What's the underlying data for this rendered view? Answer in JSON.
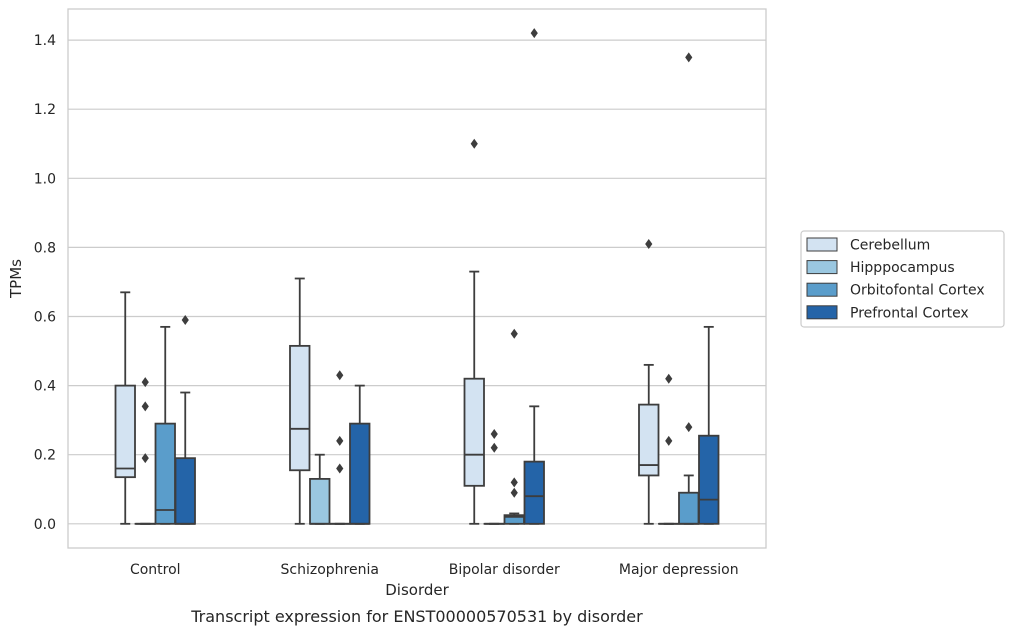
{
  "chart_data": {
    "type": "box",
    "caption": "Transcript expression for ENST00000570531 by disorder",
    "xlabel": "Disorder",
    "ylabel": "TPMs",
    "ylim": [
      -0.07,
      1.49
    ],
    "yticks": [
      "0.0",
      "0.2",
      "0.4",
      "0.6",
      "0.8",
      "1.0",
      "1.2",
      "1.4"
    ],
    "ytick_values": [
      0,
      0.2,
      0.4,
      0.6,
      0.8,
      1.0,
      1.2,
      1.4
    ],
    "grid": "horizontal",
    "legend_position": "right",
    "categories": [
      "Control",
      "Schizophrenia",
      "Bipolar disorder",
      "Major depression"
    ],
    "series": [
      {
        "name": "Cerebellum",
        "color": "#d3e3f2",
        "boxes": [
          {
            "whislo": 0.0,
            "q1": 0.135,
            "median": 0.16,
            "q3": 0.4,
            "whishi": 0.67,
            "fliers": []
          },
          {
            "whislo": 0.0,
            "q1": 0.155,
            "median": 0.275,
            "q3": 0.515,
            "whishi": 0.71,
            "fliers": []
          },
          {
            "whislo": 0.0,
            "q1": 0.11,
            "median": 0.2,
            "q3": 0.42,
            "whishi": 0.73,
            "fliers": [
              1.1
            ]
          },
          {
            "whislo": 0.0,
            "q1": 0.14,
            "median": 0.17,
            "q3": 0.345,
            "whishi": 0.46,
            "fliers": [
              0.81
            ]
          }
        ]
      },
      {
        "name": "Hipppocampus",
        "color": "#9ac7e0",
        "boxes": [
          {
            "whislo": 0.0,
            "q1": 0.0,
            "median": 0.0,
            "q3": 0.0,
            "whishi": 0.0,
            "fliers": [
              0.19,
              0.34,
              0.41
            ]
          },
          {
            "whislo": 0.0,
            "q1": 0.0,
            "median": 0.0,
            "q3": 0.13,
            "whishi": 0.2,
            "fliers": []
          },
          {
            "whislo": 0.0,
            "q1": 0.0,
            "median": 0.0,
            "q3": 0.0,
            "whishi": 0.0,
            "fliers": [
              0.22,
              0.26
            ]
          },
          {
            "whislo": 0.0,
            "q1": 0.0,
            "median": 0.0,
            "q3": 0.0,
            "whishi": 0.0,
            "fliers": [
              0.24,
              0.42
            ]
          }
        ]
      },
      {
        "name": "Orbitofontal Cortex",
        "color": "#5a9dcb",
        "boxes": [
          {
            "whislo": 0.0,
            "q1": 0.0,
            "median": 0.04,
            "q3": 0.29,
            "whishi": 0.57,
            "fliers": []
          },
          {
            "whislo": 0.0,
            "q1": 0.0,
            "median": 0.0,
            "q3": 0.0,
            "whishi": 0.0,
            "fliers": [
              0.16,
              0.24,
              0.43
            ]
          },
          {
            "whislo": 0.0,
            "q1": 0.0,
            "median": 0.02,
            "q3": 0.025,
            "whishi": 0.03,
            "fliers": [
              0.09,
              0.12,
              0.55
            ]
          },
          {
            "whislo": 0.0,
            "q1": 0.0,
            "median": 0.0,
            "q3": 0.09,
            "whishi": 0.14,
            "fliers": [
              0.28,
              1.35
            ]
          }
        ]
      },
      {
        "name": "Prefrontal Cortex",
        "color": "#2464a8",
        "boxes": [
          {
            "whislo": 0.0,
            "q1": 0.0,
            "median": 0.0,
            "q3": 0.19,
            "whishi": 0.38,
            "fliers": [
              0.59
            ]
          },
          {
            "whislo": 0.0,
            "q1": 0.0,
            "median": 0.0,
            "q3": 0.29,
            "whishi": 0.4,
            "fliers": []
          },
          {
            "whislo": 0.0,
            "q1": 0.0,
            "median": 0.08,
            "q3": 0.18,
            "whishi": 0.34,
            "fliers": [
              1.42
            ]
          },
          {
            "whislo": 0.0,
            "q1": 0.0,
            "median": 0.07,
            "q3": 0.255,
            "whishi": 0.57,
            "fliers": []
          }
        ]
      }
    ]
  }
}
